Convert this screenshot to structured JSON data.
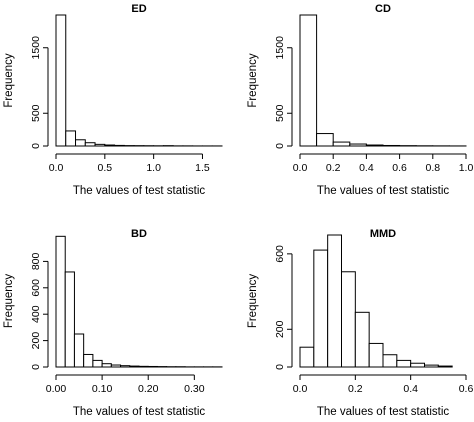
{
  "chart_data": [
    {
      "type": "bar",
      "title": "ED",
      "xlabel": "The values of test statistic",
      "ylabel": "Frequency",
      "xlim": [
        0,
        1.7
      ],
      "ylim": [
        0,
        2000
      ],
      "xticks": [
        0.0,
        0.5,
        1.0,
        1.5
      ],
      "xtick_labels": [
        "0.0",
        "0.5",
        "1.0",
        "1.5"
      ],
      "yticks": [
        0,
        500,
        1500
      ],
      "ytick_labels": [
        "0",
        "500",
        "1500"
      ],
      "bin_edges": [
        0,
        0.1,
        0.2,
        0.3,
        0.4,
        0.5,
        0.6,
        0.7,
        0.8,
        0.9,
        1.0,
        1.1,
        1.2,
        1.3,
        1.4,
        1.5,
        1.6,
        1.7
      ],
      "values": [
        2000,
        230,
        95,
        50,
        25,
        15,
        9,
        6,
        5,
        4,
        3,
        5,
        2,
        2,
        1,
        1,
        1
      ],
      "grid": false
    },
    {
      "type": "bar",
      "title": "CD",
      "xlabel": "The values of test statistic",
      "ylabel": "Frequency",
      "xlim": [
        0,
        1.0
      ],
      "ylim": [
        0,
        2000
      ],
      "xticks": [
        0.0,
        0.2,
        0.4,
        0.6,
        0.8,
        1.0
      ],
      "xtick_labels": [
        "0.0",
        "0.2",
        "0.4",
        "0.6",
        "0.8",
        "1.0"
      ],
      "yticks": [
        0,
        500,
        1500
      ],
      "ytick_labels": [
        "0",
        "500",
        "1500"
      ],
      "bin_edges": [
        0,
        0.1,
        0.2,
        0.3,
        0.4,
        0.5,
        0.6,
        0.7,
        0.8,
        0.9,
        1.0
      ],
      "values": [
        2000,
        190,
        60,
        30,
        15,
        8,
        5,
        3,
        2,
        1
      ],
      "grid": false
    },
    {
      "type": "bar",
      "title": "BD",
      "xlabel": "The values of test statistic",
      "ylabel": "Frequency",
      "xlim": [
        0,
        0.36
      ],
      "ylim": [
        0,
        1000
      ],
      "xticks": [
        0.0,
        0.1,
        0.2,
        0.3
      ],
      "xtick_labels": [
        "0.00",
        "0.10",
        "0.20",
        "0.30"
      ],
      "yticks": [
        0,
        200,
        400,
        600,
        800
      ],
      "ytick_labels": [
        "0",
        "200",
        "400",
        "600",
        "800"
      ],
      "bin_edges": [
        0,
        0.02,
        0.04,
        0.06,
        0.08,
        0.1,
        0.12,
        0.14,
        0.16,
        0.18,
        0.2,
        0.22,
        0.24,
        0.26,
        0.28,
        0.3,
        0.32,
        0.34,
        0.36
      ],
      "values": [
        990,
        720,
        250,
        95,
        50,
        25,
        15,
        10,
        7,
        5,
        4,
        3,
        2,
        2,
        1,
        1,
        1,
        1
      ],
      "grid": false
    },
    {
      "type": "bar",
      "title": "MMD",
      "xlabel": "The values of test statistic",
      "ylabel": "Frequency",
      "xlim": [
        0,
        0.6
      ],
      "ylim": [
        0,
        700
      ],
      "xticks": [
        0.0,
        0.2,
        0.4,
        0.6
      ],
      "xtick_labels": [
        "0.0",
        "0.2",
        "0.4",
        "0.6"
      ],
      "yticks": [
        0,
        200,
        600
      ],
      "ytick_labels": [
        "0",
        "200",
        "600"
      ],
      "bin_edges": [
        0,
        0.05,
        0.1,
        0.15,
        0.2,
        0.25,
        0.3,
        0.35,
        0.4,
        0.45,
        0.5,
        0.55
      ],
      "values": [
        105,
        620,
        700,
        505,
        290,
        125,
        65,
        35,
        20,
        10,
        5
      ],
      "grid": false
    }
  ]
}
